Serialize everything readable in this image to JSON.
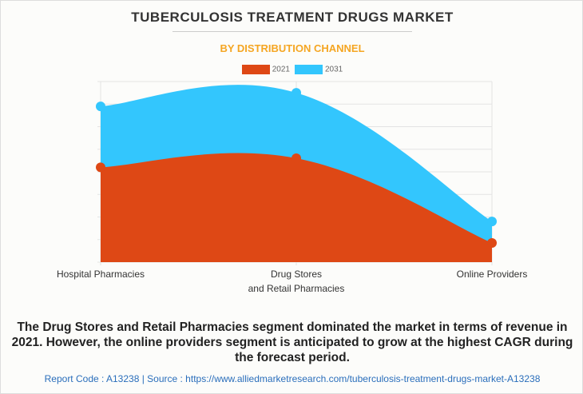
{
  "title": "TUBERCULOSIS TREATMENT DRUGS MARKET",
  "subtitle": "BY DISTRIBUTION CHANNEL",
  "chart_data": {
    "type": "area",
    "title": "TUBERCULOSIS TREATMENT DRUGS MARKET",
    "subtitle": "BY DISTRIBUTION CHANNEL",
    "categories": [
      "Hospital Pharmacies",
      "Drug Stores\nand Retail Pharmacies",
      "Online Providers"
    ],
    "category_lines": [
      [
        "Hospital Pharmacies"
      ],
      [
        "Drug Stores",
        "and Retail Pharmacies"
      ],
      [
        "Online Providers"
      ]
    ],
    "series": [
      {
        "name": "2021",
        "color": "#de4815",
        "values": [
          4.2,
          4.6,
          0.85
        ]
      },
      {
        "name": "2031",
        "color": "#33c6fd",
        "values": [
          6.9,
          7.5,
          1.8
        ]
      }
    ],
    "ylim": [
      0,
      8
    ],
    "grid": true,
    "legend": "top-center",
    "xlabel": "",
    "ylabel": ""
  },
  "description": "The Drug Stores and Retail Pharmacies segment dominated the market in terms of revenue in 2021. However, the online providers segment is anticipated to grow at the highest CAGR during the forecast period.",
  "footer": "Report Code : A13238  |  Source : https://www.alliedmarketresearch.com/tuberculosis-treatment-drugs-market-A13238"
}
